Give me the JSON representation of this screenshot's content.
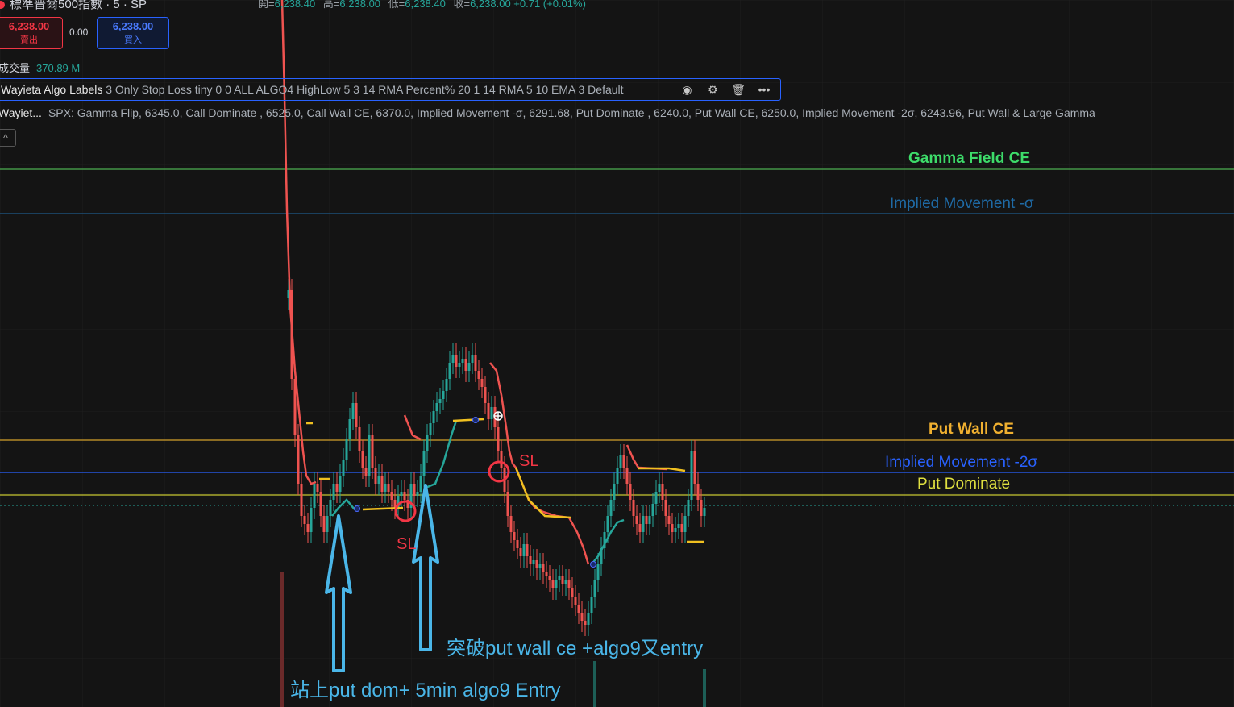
{
  "header": {
    "title": "標準普爾500指數 · 5 · SP",
    "ohlc": [
      {
        "label": "開=",
        "value": "6,238.40"
      },
      {
        "label": "高=",
        "value": "6,238.00"
      },
      {
        "label": "低=",
        "value": "6,238.40"
      },
      {
        "label": "收=",
        "value": "6,238.00 +0.71 (+0.01%)"
      }
    ],
    "sell_price": "6,238.00",
    "sell_label": "賣出",
    "spread": "0.00",
    "buy_price": "6,238.00",
    "buy_label": "買入",
    "volume_label": "成交量",
    "volume_value": "370.89 M"
  },
  "indicators": {
    "algo_name": "Wayieta Algo Labels",
    "algo_args": "3 Only Stop Loss tiny 0 0 ALL ALGO4 HighLow 5 3 14 RMA Percent% 20 1 14 RMA 5 10 EMA 3 Default",
    "levels_name": "Wayiet...",
    "levels_text": "SPX: Gamma Flip, 6345.0, Call Dominate , 6525.0, Call Wall CE, 6370.0, Implied Movement -σ, 6291.68, Put Dominate , 6240.0, Put Wall CE, 6250.0, Implied Movement -2σ, 6243.96, Put Wall & Large Gamma",
    "icons": [
      "eye-icon",
      "settings-icon",
      "trash-icon",
      "more-icon"
    ],
    "collapse_glyph": "^"
  },
  "chart_data": {
    "type": "candlestick",
    "levels": [
      {
        "name": "Gamma Field CE",
        "color": "#4caf50"
      },
      {
        "name": "Implied Movement -σ",
        "color": "#1e5a8a"
      },
      {
        "name": "Put Wall CE",
        "color": "#d4a02a"
      },
      {
        "name": "Implied Movement -2σ",
        "color": "#2962ff"
      },
      {
        "name": "Put Dominate",
        "color": "#c8c832"
      }
    ],
    "annotations": [
      {
        "text": "站上put dom+ 5min algo9 Entry"
      },
      {
        "text": "突破put wall ce +algo9又entry"
      }
    ],
    "stop_labels": [
      "SL",
      "SL"
    ]
  }
}
